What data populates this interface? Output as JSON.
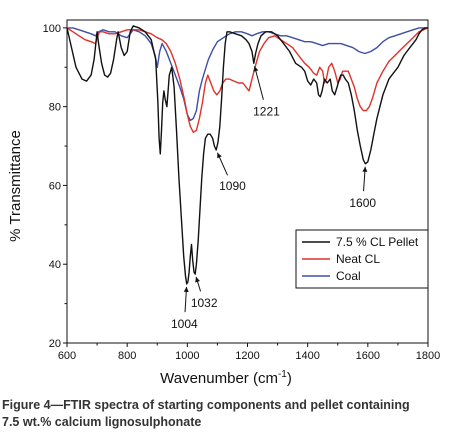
{
  "chart_data": {
    "type": "line",
    "xlabel": "Wavenumber (cm",
    "xlabel_sup": "-1",
    "xlabel_end": ")",
    "ylabel": "% Transmittance",
    "xlim": [
      600,
      1800
    ],
    "ylim": [
      20,
      102
    ],
    "x_ticks": [
      600,
      800,
      1000,
      1200,
      1400,
      1600,
      1800
    ],
    "y_ticks": [
      20,
      40,
      60,
      80,
      100
    ],
    "grid": false,
    "legend_position": "bottom-right",
    "series": [
      {
        "name": "7.5 % CL Pellet",
        "color": "#111111",
        "points": [
          [
            600,
            100
          ],
          [
            615,
            95
          ],
          [
            630,
            90
          ],
          [
            650,
            87
          ],
          [
            665,
            86.5
          ],
          [
            680,
            88
          ],
          [
            690,
            92
          ],
          [
            700,
            99
          ],
          [
            705,
            96
          ],
          [
            715,
            91
          ],
          [
            725,
            88
          ],
          [
            735,
            87.5
          ],
          [
            745,
            88.5
          ],
          [
            755,
            92
          ],
          [
            765,
            97
          ],
          [
            770,
            99
          ],
          [
            780,
            95
          ],
          [
            790,
            93
          ],
          [
            800,
            94
          ],
          [
            810,
            99
          ],
          [
            820,
            100.5
          ],
          [
            840,
            100
          ],
          [
            860,
            99
          ],
          [
            880,
            97
          ],
          [
            895,
            92
          ],
          [
            902,
            81
          ],
          [
            906,
            72
          ],
          [
            910,
            68
          ],
          [
            914,
            74
          ],
          [
            918,
            81
          ],
          [
            922,
            84
          ],
          [
            926,
            82
          ],
          [
            932,
            80
          ],
          [
            940,
            88
          ],
          [
            948,
            90
          ],
          [
            956,
            85
          ],
          [
            964,
            74
          ],
          [
            972,
            62
          ],
          [
            980,
            52
          ],
          [
            988,
            42
          ],
          [
            994,
            37
          ],
          [
            998,
            35
          ],
          [
            1002,
            35.5
          ],
          [
            1006,
            38
          ],
          [
            1010,
            42
          ],
          [
            1014,
            45
          ],
          [
            1018,
            41
          ],
          [
            1022,
            38
          ],
          [
            1026,
            37.5
          ],
          [
            1030,
            40
          ],
          [
            1036,
            46
          ],
          [
            1042,
            54
          ],
          [
            1048,
            62
          ],
          [
            1054,
            68
          ],
          [
            1060,
            72
          ],
          [
            1068,
            73
          ],
          [
            1076,
            73
          ],
          [
            1084,
            72
          ],
          [
            1090,
            70
          ],
          [
            1096,
            69
          ],
          [
            1102,
            71
          ],
          [
            1108,
            75
          ],
          [
            1114,
            82
          ],
          [
            1120,
            90
          ],
          [
            1126,
            96
          ],
          [
            1132,
            99
          ],
          [
            1140,
            99
          ],
          [
            1160,
            98.5
          ],
          [
            1180,
            98
          ],
          [
            1195,
            97
          ],
          [
            1205,
            96
          ],
          [
            1215,
            94
          ],
          [
            1221,
            91
          ],
          [
            1227,
            93.5
          ],
          [
            1235,
            96
          ],
          [
            1245,
            98
          ],
          [
            1260,
            99
          ],
          [
            1280,
            99
          ],
          [
            1300,
            98
          ],
          [
            1320,
            96
          ],
          [
            1340,
            94
          ],
          [
            1360,
            91
          ],
          [
            1380,
            90
          ],
          [
            1390,
            89
          ],
          [
            1400,
            86.5
          ],
          [
            1410,
            85.5
          ],
          [
            1420,
            87
          ],
          [
            1430,
            86
          ],
          [
            1436,
            83
          ],
          [
            1442,
            82.5
          ],
          [
            1448,
            84
          ],
          [
            1456,
            87
          ],
          [
            1465,
            86
          ],
          [
            1475,
            87
          ],
          [
            1482,
            84
          ],
          [
            1490,
            83
          ],
          [
            1498,
            85
          ],
          [
            1505,
            87
          ],
          [
            1510,
            88
          ],
          [
            1518,
            88
          ],
          [
            1525,
            87
          ],
          [
            1535,
            86
          ],
          [
            1545,
            83
          ],
          [
            1555,
            79
          ],
          [
            1565,
            74
          ],
          [
            1575,
            70
          ],
          [
            1585,
            66.5
          ],
          [
            1592,
            65.5
          ],
          [
            1600,
            66
          ],
          [
            1610,
            69
          ],
          [
            1620,
            73
          ],
          [
            1630,
            77
          ],
          [
            1640,
            80
          ],
          [
            1650,
            83
          ],
          [
            1660,
            85
          ],
          [
            1670,
            87
          ],
          [
            1680,
            88
          ],
          [
            1690,
            89
          ],
          [
            1700,
            90
          ],
          [
            1710,
            91.5
          ],
          [
            1720,
            93
          ],
          [
            1730,
            94
          ],
          [
            1740,
            95
          ],
          [
            1750,
            96
          ],
          [
            1760,
            97
          ],
          [
            1770,
            98.5
          ],
          [
            1780,
            99.5
          ],
          [
            1790,
            100
          ],
          [
            1800,
            100
          ]
        ]
      },
      {
        "name": "Neat CL",
        "color": "#e0322a",
        "points": [
          [
            600,
            100
          ],
          [
            620,
            99
          ],
          [
            640,
            98
          ],
          [
            660,
            97
          ],
          [
            680,
            96.5
          ],
          [
            695,
            96
          ],
          [
            700,
            97.5
          ],
          [
            708,
            99
          ],
          [
            720,
            99
          ],
          [
            740,
            98.5
          ],
          [
            760,
            98.5
          ],
          [
            780,
            99
          ],
          [
            800,
            99.5
          ],
          [
            820,
            99.5
          ],
          [
            840,
            99.5
          ],
          [
            860,
            99
          ],
          [
            880,
            98.5
          ],
          [
            900,
            97.5
          ],
          [
            915,
            97
          ],
          [
            930,
            96
          ],
          [
            945,
            94
          ],
          [
            960,
            91
          ],
          [
            975,
            87
          ],
          [
            990,
            82
          ],
          [
            1000,
            78
          ],
          [
            1010,
            75
          ],
          [
            1020,
            73.5
          ],
          [
            1030,
            74
          ],
          [
            1040,
            77
          ],
          [
            1050,
            81
          ],
          [
            1060,
            86
          ],
          [
            1068,
            88
          ],
          [
            1078,
            86
          ],
          [
            1088,
            84
          ],
          [
            1098,
            83
          ],
          [
            1108,
            84
          ],
          [
            1118,
            86
          ],
          [
            1128,
            87
          ],
          [
            1140,
            87
          ],
          [
            1155,
            86.5
          ],
          [
            1170,
            86
          ],
          [
            1185,
            86
          ],
          [
            1195,
            85
          ],
          [
            1205,
            84
          ],
          [
            1215,
            87
          ],
          [
            1225,
            90
          ],
          [
            1240,
            94
          ],
          [
            1255,
            96
          ],
          [
            1270,
            97.5
          ],
          [
            1290,
            98
          ],
          [
            1310,
            97
          ],
          [
            1330,
            96
          ],
          [
            1350,
            95
          ],
          [
            1370,
            93
          ],
          [
            1390,
            91
          ],
          [
            1405,
            90
          ],
          [
            1420,
            88.5
          ],
          [
            1430,
            88
          ],
          [
            1440,
            90
          ],
          [
            1450,
            89
          ],
          [
            1456,
            86
          ],
          [
            1462,
            87
          ],
          [
            1470,
            90
          ],
          [
            1480,
            91
          ],
          [
            1490,
            89
          ],
          [
            1500,
            86
          ],
          [
            1508,
            87
          ],
          [
            1516,
            89
          ],
          [
            1525,
            89
          ],
          [
            1535,
            89
          ],
          [
            1545,
            87
          ],
          [
            1555,
            85
          ],
          [
            1565,
            82
          ],
          [
            1575,
            80
          ],
          [
            1585,
            79
          ],
          [
            1595,
            79
          ],
          [
            1605,
            80
          ],
          [
            1615,
            82
          ],
          [
            1630,
            86
          ],
          [
            1650,
            89
          ],
          [
            1670,
            91.5
          ],
          [
            1690,
            93
          ],
          [
            1710,
            94.5
          ],
          [
            1730,
            96
          ],
          [
            1750,
            97.5
          ],
          [
            1770,
            99
          ],
          [
            1785,
            99.5
          ],
          [
            1800,
            100
          ]
        ]
      },
      {
        "name": "Coal",
        "color": "#3d4fa8",
        "points": [
          [
            600,
            100
          ],
          [
            620,
            100
          ],
          [
            640,
            99.5
          ],
          [
            660,
            99
          ],
          [
            680,
            98.5
          ],
          [
            695,
            98
          ],
          [
            705,
            99
          ],
          [
            720,
            99.5
          ],
          [
            740,
            99
          ],
          [
            760,
            99
          ],
          [
            780,
            98
          ],
          [
            800,
            97.5
          ],
          [
            810,
            98.5
          ],
          [
            820,
            99.5
          ],
          [
            840,
            99
          ],
          [
            860,
            98
          ],
          [
            880,
            96
          ],
          [
            893,
            93
          ],
          [
            900,
            90
          ],
          [
            908,
            94
          ],
          [
            916,
            96
          ],
          [
            930,
            94
          ],
          [
            945,
            91
          ],
          [
            960,
            88
          ],
          [
            975,
            85
          ],
          [
            988,
            82
          ],
          [
            1000,
            78
          ],
          [
            1010,
            76.5
          ],
          [
            1020,
            77
          ],
          [
            1030,
            79
          ],
          [
            1040,
            84
          ],
          [
            1050,
            87
          ],
          [
            1060,
            89.5
          ],
          [
            1070,
            92
          ],
          [
            1085,
            94.5
          ],
          [
            1100,
            96.5
          ],
          [
            1120,
            97.5
          ],
          [
            1140,
            98.5
          ],
          [
            1160,
            99
          ],
          [
            1180,
            99
          ],
          [
            1200,
            98.5
          ],
          [
            1215,
            98
          ],
          [
            1230,
            98.5
          ],
          [
            1250,
            99
          ],
          [
            1270,
            99
          ],
          [
            1290,
            98.5
          ],
          [
            1310,
            98
          ],
          [
            1330,
            98
          ],
          [
            1350,
            97.5
          ],
          [
            1370,
            97
          ],
          [
            1390,
            96.5
          ],
          [
            1410,
            96.5
          ],
          [
            1430,
            96
          ],
          [
            1450,
            95.5
          ],
          [
            1470,
            96
          ],
          [
            1490,
            96
          ],
          [
            1510,
            96
          ],
          [
            1530,
            95.5
          ],
          [
            1550,
            95
          ],
          [
            1570,
            94
          ],
          [
            1590,
            93.5
          ],
          [
            1610,
            94
          ],
          [
            1630,
            95
          ],
          [
            1650,
            96.5
          ],
          [
            1670,
            97.5
          ],
          [
            1690,
            98
          ],
          [
            1710,
            98.5
          ],
          [
            1730,
            99
          ],
          [
            1750,
            99.5
          ],
          [
            1770,
            100
          ],
          [
            1800,
            100
          ]
        ]
      }
    ],
    "annotations": [
      {
        "text": "1004",
        "x": 998,
        "y": 35,
        "label_x": 990,
        "label_y": 24.8
      },
      {
        "text": "1032",
        "x": 1026,
        "y": 37.5,
        "label_x": 1056,
        "label_y": 30.2
      },
      {
        "text": "1090",
        "x": 1096,
        "y": 69,
        "label_x": 1150,
        "label_y": 59.8
      },
      {
        "text": "1221",
        "x": 1221,
        "y": 91,
        "label_x": 1263,
        "label_y": 78.8
      },
      {
        "text": "1600",
        "x": 1592,
        "y": 65.5,
        "label_x": 1583,
        "label_y": 55.5
      }
    ]
  },
  "caption": {
    "line1": "Figure 4—FTIR spectra of starting components and pellet containing",
    "line2": "7.5 wt.% calcium lignosulphonate"
  }
}
